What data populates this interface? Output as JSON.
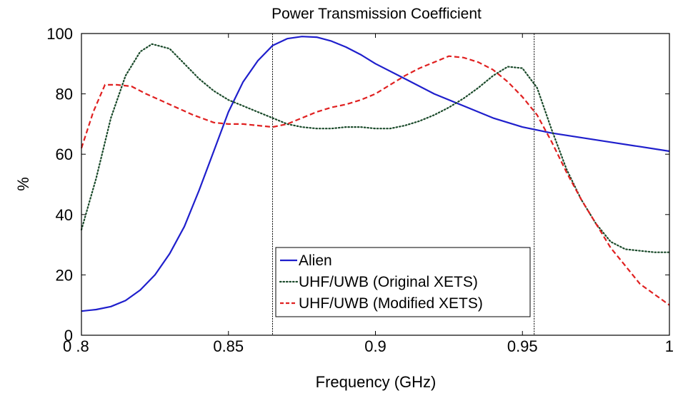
{
  "chart_data": {
    "type": "line",
    "title": "Power Transmission Coefficient",
    "xlabel": "Frequency (GHz)",
    "ylabel": "%",
    "xlim": [
      0.8,
      1.0
    ],
    "ylim": [
      0,
      100
    ],
    "xticks": [
      0.8,
      0.85,
      0.9,
      0.95,
      1.0
    ],
    "xtick_labels": [
      "0 .8",
      "0.85",
      "0.9",
      "0.95",
      "1"
    ],
    "yticks": [
      0,
      20,
      40,
      60,
      80,
      100
    ],
    "ytick_labels": [
      "0",
      "20",
      "40",
      "60",
      "80",
      "100"
    ],
    "grid": false,
    "legend_position": "bottom-center",
    "vertical_lines": [
      0.865,
      0.954
    ],
    "series": [
      {
        "name": "Alien",
        "color": "#1f1fcc",
        "style": "solid",
        "x": [
          0.8,
          0.805,
          0.81,
          0.815,
          0.82,
          0.825,
          0.83,
          0.835,
          0.84,
          0.845,
          0.85,
          0.855,
          0.86,
          0.865,
          0.87,
          0.875,
          0.88,
          0.885,
          0.89,
          0.895,
          0.9,
          0.91,
          0.92,
          0.93,
          0.94,
          0.95,
          0.96,
          0.97,
          0.98,
          0.99,
          1.0
        ],
        "y": [
          8,
          8.5,
          9.5,
          11.5,
          15,
          20,
          27,
          36,
          48,
          61,
          74,
          84,
          91,
          96,
          98.3,
          99,
          98.8,
          97.5,
          95.5,
          93,
          90,
          85,
          80,
          76,
          72,
          69,
          67,
          65.5,
          64,
          62.5,
          61
        ]
      },
      {
        "name": "UHF/UWB (Original XETS)",
        "color": "#1a4a2a",
        "style": "dotted",
        "x": [
          0.8,
          0.805,
          0.81,
          0.815,
          0.82,
          0.824,
          0.83,
          0.835,
          0.84,
          0.845,
          0.85,
          0.855,
          0.86,
          0.865,
          0.87,
          0.875,
          0.88,
          0.885,
          0.89,
          0.895,
          0.9,
          0.905,
          0.91,
          0.915,
          0.92,
          0.925,
          0.93,
          0.935,
          0.94,
          0.945,
          0.95,
          0.955,
          0.96,
          0.965,
          0.97,
          0.975,
          0.98,
          0.985,
          0.99,
          0.995,
          1.0
        ],
        "y": [
          35,
          52,
          72,
          86,
          94,
          96.5,
          95,
          90,
          85,
          81,
          78,
          76,
          74,
          72,
          70,
          69,
          68.5,
          68.5,
          69,
          69,
          68.5,
          68.5,
          69.5,
          71,
          73,
          75.5,
          78.5,
          82,
          86,
          89,
          88.5,
          82,
          68,
          55,
          45,
          37,
          31,
          28.5,
          28,
          27.5,
          27.5
        ]
      },
      {
        "name": "UHF/UWB (Modified XETS)",
        "color": "#e02020",
        "style": "dashed",
        "x": [
          0.8,
          0.804,
          0.808,
          0.812,
          0.817,
          0.822,
          0.83,
          0.838,
          0.845,
          0.85,
          0.855,
          0.86,
          0.865,
          0.87,
          0.875,
          0.88,
          0.885,
          0.89,
          0.895,
          0.9,
          0.905,
          0.91,
          0.915,
          0.92,
          0.925,
          0.93,
          0.935,
          0.94,
          0.945,
          0.95,
          0.955,
          0.96,
          0.965,
          0.97,
          0.975,
          0.98,
          0.985,
          0.99,
          0.995,
          1.0
        ],
        "y": [
          62,
          74,
          83,
          83,
          82.5,
          80,
          76.5,
          73,
          70.5,
          70,
          70,
          69.5,
          69,
          70,
          72,
          74,
          75.5,
          76.5,
          78,
          80,
          83,
          86,
          88.5,
          90.5,
          92.5,
          92,
          90.5,
          88,
          84,
          79,
          73,
          64,
          54,
          45,
          37,
          29,
          23,
          17,
          13.5,
          10
        ]
      }
    ]
  }
}
